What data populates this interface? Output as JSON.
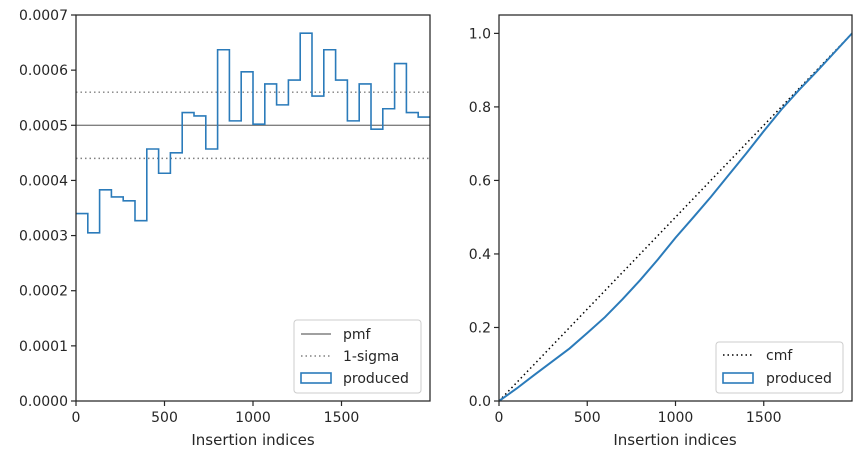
{
  "chart_data": [
    {
      "type": "line",
      "panel": "left",
      "xlabel": "Insertion indices",
      "ylabel": "",
      "xlim": [
        0,
        2000
      ],
      "ylim": [
        0,
        0.0007
      ],
      "xticks": [
        0,
        500,
        1000,
        1500
      ],
      "xtick_labels": [
        "0",
        "500",
        "1000",
        "1500"
      ],
      "yticks": [
        0,
        0.0001,
        0.0002,
        0.0003,
        0.0004,
        0.0005,
        0.0006,
        0.0007
      ],
      "ytick_labels": [
        "0.0000",
        "0.0001",
        "0.0002",
        "0.0003",
        "0.0004",
        "0.0005",
        "0.0006",
        "0.0007"
      ],
      "grid": false,
      "legend": "lower right",
      "hlines": [
        {
          "name": "pmf",
          "y": 0.0005,
          "style": "solid",
          "color": "#808080"
        },
        {
          "name": "1-sigma",
          "y": 0.00056,
          "style": "dotted",
          "color": "#808080"
        },
        {
          "name": "1-sigma",
          "y": 0.00044,
          "style": "dotted",
          "color": "#808080"
        }
      ],
      "series": [
        {
          "name": "produced",
          "type": "step-histogram",
          "color": "#2b7bba",
          "bin_edges": [
            0,
            66.7,
            133.3,
            200,
            266.7,
            333.3,
            400,
            466.7,
            533.3,
            600,
            666.7,
            733.3,
            800,
            866.7,
            933.3,
            1000,
            1066.7,
            1133.3,
            1200,
            1266.7,
            1333.3,
            1400,
            1466.7,
            1533.3,
            1600,
            1666.7,
            1733.3,
            1800,
            1866.7,
            1933.3,
            2000
          ],
          "values": [
            0.00034,
            0.000305,
            0.000383,
            0.00037,
            0.000363,
            0.000327,
            0.000457,
            0.000413,
            0.00045,
            0.000523,
            0.000517,
            0.000457,
            0.000637,
            0.000508,
            0.000597,
            0.000502,
            0.000575,
            0.000537,
            0.000582,
            0.000667,
            0.000553,
            0.000637,
            0.000582,
            0.000508,
            0.000575,
            0.000493,
            0.00053,
            0.000612,
            0.000523,
            0.000515
          ]
        }
      ],
      "legend_entries": [
        "pmf",
        "1-sigma",
        "produced"
      ]
    },
    {
      "type": "line",
      "panel": "right",
      "xlabel": "Insertion indices",
      "ylabel": "",
      "xlim": [
        0,
        2000
      ],
      "ylim": [
        0,
        1.05
      ],
      "xticks": [
        0,
        500,
        1000,
        1500
      ],
      "xtick_labels": [
        "0",
        "500",
        "1000",
        "1500"
      ],
      "yticks": [
        0,
        0.2,
        0.4,
        0.6,
        0.8,
        1.0
      ],
      "ytick_labels": [
        "0.0",
        "0.2",
        "0.4",
        "0.6",
        "0.8",
        "1.0"
      ],
      "grid": false,
      "legend": "lower right",
      "series": [
        {
          "name": "cmf",
          "style": "dotted",
          "color": "#000000",
          "x": [
            0,
            2000
          ],
          "y": [
            0,
            1.0
          ]
        },
        {
          "name": "produced",
          "style": "solid",
          "color": "#2b7bba",
          "x": [
            0,
            100,
            200,
            300,
            400,
            500,
            600,
            700,
            800,
            900,
            1000,
            1100,
            1200,
            1300,
            1400,
            1500,
            1600,
            1700,
            1800,
            1900,
            2000
          ],
          "y": [
            0,
            0.034,
            0.071,
            0.107,
            0.143,
            0.185,
            0.228,
            0.277,
            0.329,
            0.385,
            0.444,
            0.499,
            0.555,
            0.614,
            0.673,
            0.734,
            0.793,
            0.846,
            0.896,
            0.948,
            1.0
          ]
        }
      ],
      "legend_entries": [
        "cmf",
        "produced"
      ]
    }
  ]
}
